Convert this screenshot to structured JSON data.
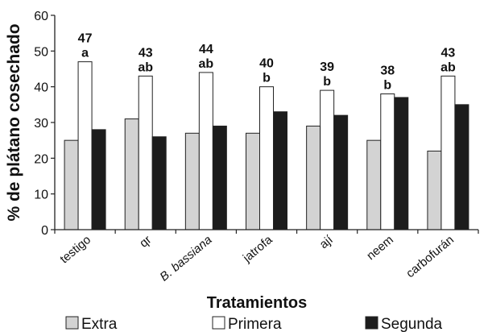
{
  "chart_data": {
    "type": "bar",
    "xlabel": "Tratamientos",
    "ylabel": "% de plátano cosechado",
    "ylim": [
      0,
      60
    ],
    "yticks": [
      0,
      10,
      20,
      30,
      40,
      50,
      60
    ],
    "grid": false,
    "legend_position": "bottom",
    "categories": [
      "testigo",
      "qr",
      "B. bassiana",
      "jatrofa",
      "ají",
      "neem",
      "carbofurán"
    ],
    "categories_italic": [
      false,
      false,
      true,
      false,
      false,
      false,
      false
    ],
    "series": [
      {
        "name": "Extra",
        "color": "#d3d3d3",
        "values": [
          25,
          31,
          27,
          27,
          29,
          25,
          22
        ]
      },
      {
        "name": "Primera",
        "color": "#ffffff",
        "values": [
          47,
          43,
          44,
          40,
          39,
          38,
          43
        ]
      },
      {
        "name": "Segunda",
        "color": "#1c1c1c",
        "values": [
          28,
          26,
          29,
          33,
          32,
          37,
          35
        ]
      }
    ],
    "annotations": [
      {
        "value": "47",
        "letter": "a"
      },
      {
        "value": "43",
        "letter": "ab"
      },
      {
        "value": "44",
        "letter": "ab"
      },
      {
        "value": "40",
        "letter": "b"
      },
      {
        "value": "39",
        "letter": "b"
      },
      {
        "value": "38",
        "letter": "b"
      },
      {
        "value": "43",
        "letter": "ab"
      }
    ]
  }
}
